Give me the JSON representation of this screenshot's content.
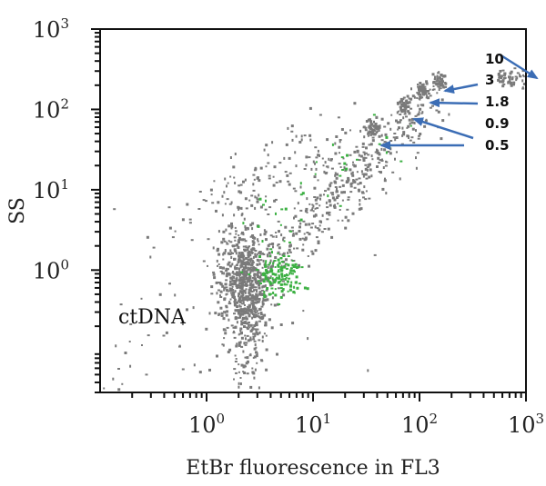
{
  "chart_data": {
    "type": "scatter",
    "xlabel": "EtBr fluorescence in FL3",
    "ylabel": "SS",
    "xscale": "log",
    "yscale": "log",
    "xlim": [
      0.1,
      1000
    ],
    "ylim": [
      0.03,
      1000
    ],
    "x_ticks": [
      {
        "base": "10",
        "exp": "0"
      },
      {
        "base": "10",
        "exp": "1"
      },
      {
        "base": "10",
        "exp": "2"
      },
      {
        "base": "10",
        "exp": "3"
      }
    ],
    "y_ticks": [
      {
        "base": "10",
        "exp": "0"
      },
      {
        "base": "10",
        "exp": "1"
      },
      {
        "base": "10",
        "exp": "2"
      },
      {
        "base": "10",
        "exp": "3"
      }
    ],
    "grid": false,
    "colors": {
      "events": "#7a7a7a",
      "highlight": "#3cb043",
      "arrow": "#3b6db5",
      "frame": "#111111"
    },
    "annotation": "ctDNA",
    "populations": [
      {
        "label": "ctDNA",
        "x": 2.2,
        "y": 0.75,
        "color": "gray"
      },
      {
        "label": "highlight",
        "x": 4.8,
        "y": 0.85,
        "color": "green"
      },
      {
        "label": "0.5",
        "x": 35,
        "y": 60
      },
      {
        "label": "0.9",
        "x": 70,
        "y": 115
      },
      {
        "label": "1.8",
        "x": 105,
        "y": 175
      },
      {
        "label": "3",
        "x": 150,
        "y": 230
      },
      {
        "label": "10",
        "x": 900,
        "y": 300
      }
    ],
    "dose_labels": [
      "10",
      "3",
      "1.8",
      "0.9",
      "0.5"
    ]
  }
}
